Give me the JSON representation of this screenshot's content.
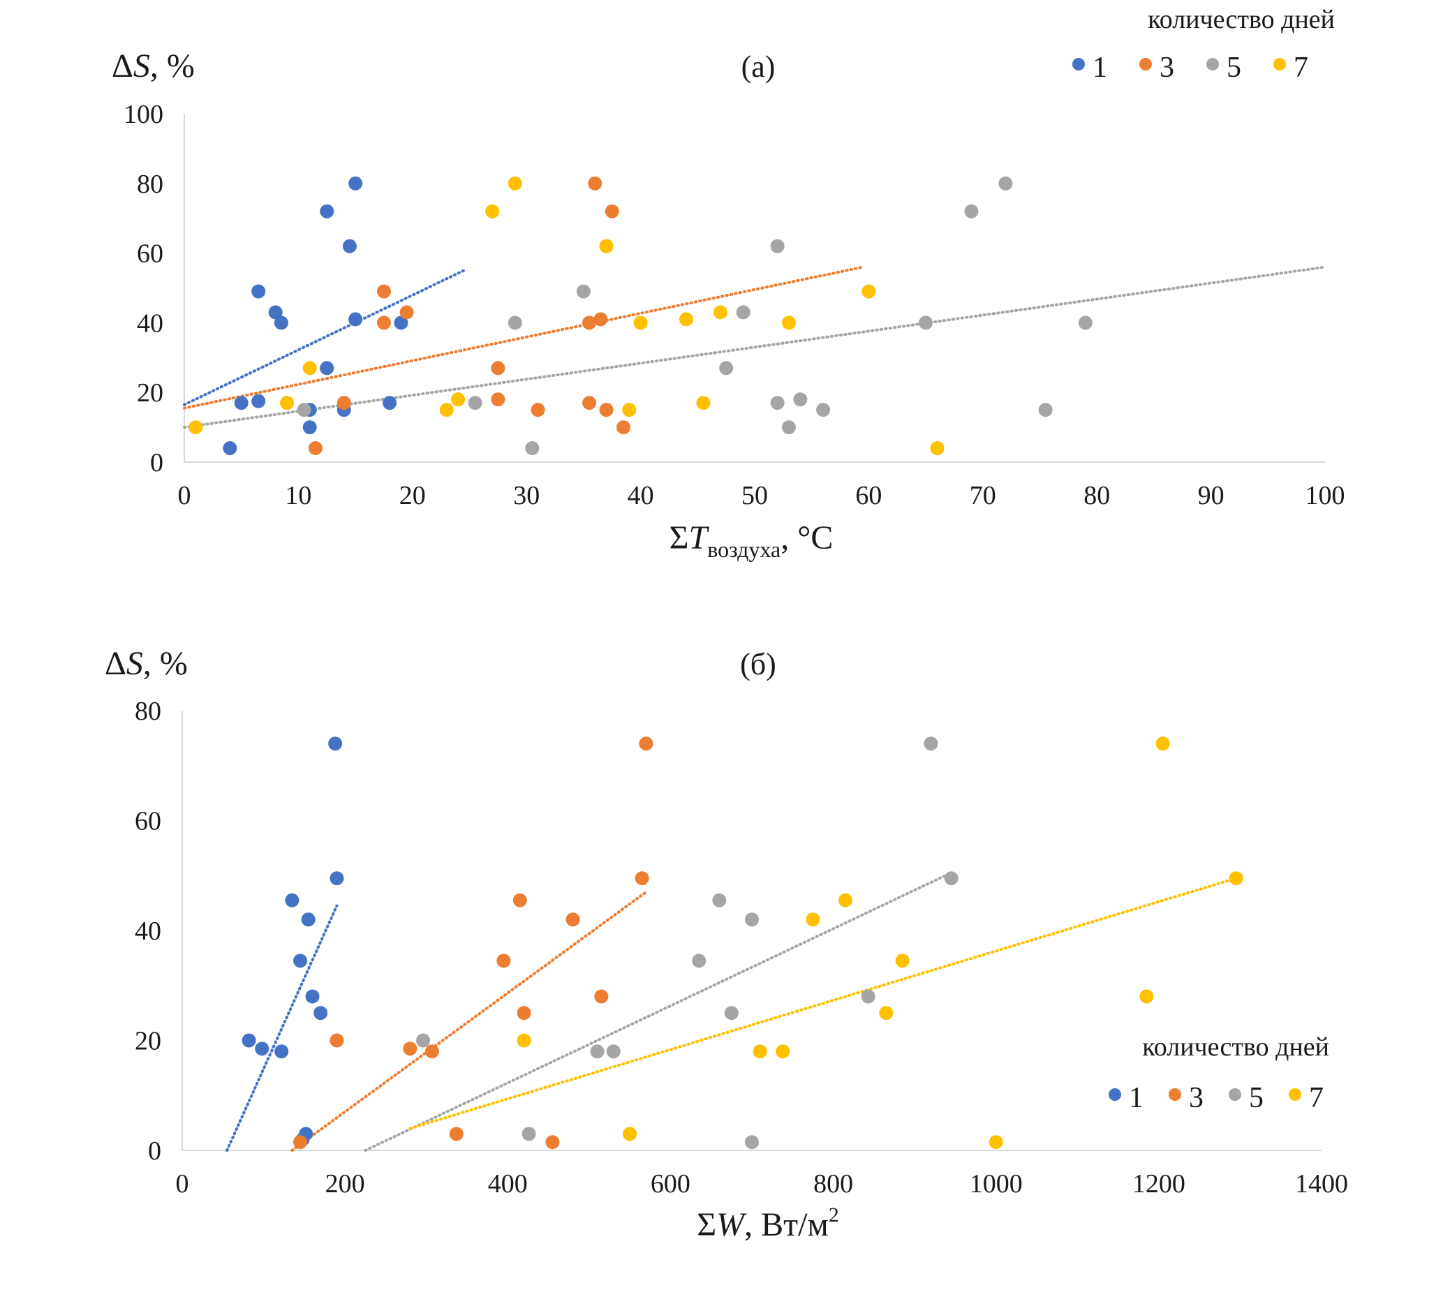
{
  "colors": {
    "series_1": "#4472c4",
    "series_3": "#ed7d31",
    "series_5": "#a5a5a5",
    "series_7": "#ffc000",
    "axis": "#d9d9d9",
    "text": "#1a1a1a"
  },
  "chart_data": [
    {
      "type": "scatter",
      "title": "(а)",
      "ylabel": "ΔS, %",
      "xlabel_main": "ΣT",
      "xlabel_sub": "воздуха",
      "xlabel_unit": ", °C",
      "xlim": [
        0,
        100
      ],
      "ylim": [
        0,
        100
      ],
      "x_ticks": [
        "0",
        "10",
        "20",
        "30",
        "40",
        "50",
        "60",
        "70",
        "80",
        "90",
        "100"
      ],
      "y_ticks": [
        "0",
        "20",
        "40",
        "60",
        "80",
        "100"
      ],
      "legend_title": "количество дней",
      "legend_position": "top-right",
      "series": [
        {
          "name": "1",
          "color": "#4472c4",
          "points": [
            [
              4,
              4
            ],
            [
              5,
              17
            ],
            [
              6.5,
              17.5
            ],
            [
              6.5,
              49
            ],
            [
              8,
              43
            ],
            [
              8.5,
              40
            ],
            [
              11,
              15
            ],
            [
              11,
              10
            ],
            [
              12.5,
              72
            ],
            [
              12.5,
              27
            ],
            [
              14,
              15
            ],
            [
              14.5,
              62
            ],
            [
              15,
              80
            ],
            [
              15,
              41
            ],
            [
              18,
              17
            ],
            [
              19,
              40
            ]
          ],
          "trend": [
            [
              0,
              16.5
            ],
            [
              24.5,
              55
            ]
          ]
        },
        {
          "name": "3",
          "color": "#ed7d31",
          "points": [
            [
              11.5,
              4
            ],
            [
              14,
              17
            ],
            [
              17.5,
              49
            ],
            [
              17.5,
              40
            ],
            [
              19.5,
              43
            ],
            [
              27.5,
              27
            ],
            [
              27.5,
              18
            ],
            [
              31,
              15
            ],
            [
              35.5,
              40
            ],
            [
              35.5,
              17
            ],
            [
              36,
              80
            ],
            [
              36.5,
              41
            ],
            [
              37,
              62
            ],
            [
              37,
              15
            ],
            [
              37.5,
              72
            ],
            [
              38.5,
              10
            ]
          ],
          "trend": [
            [
              0,
              15.5
            ],
            [
              59.5,
              56
            ]
          ]
        },
        {
          "name": "5",
          "color": "#a5a5a5",
          "points": [
            [
              10.5,
              15
            ],
            [
              25.5,
              17
            ],
            [
              29,
              40
            ],
            [
              30.5,
              4
            ],
            [
              35,
              49
            ],
            [
              47.5,
              27
            ],
            [
              49,
              43
            ],
            [
              52,
              62
            ],
            [
              52,
              17
            ],
            [
              53,
              10
            ],
            [
              54,
              18
            ],
            [
              56,
              15
            ],
            [
              65,
              40
            ],
            [
              69,
              72
            ],
            [
              72,
              80
            ],
            [
              75.5,
              15
            ],
            [
              79,
              40
            ]
          ],
          "trend": [
            [
              0,
              10
            ],
            [
              100,
              56
            ]
          ]
        },
        {
          "name": "7",
          "color": "#ffc000",
          "points": [
            [
              1,
              10
            ],
            [
              9,
              17
            ],
            [
              11,
              27
            ],
            [
              23,
              15
            ],
            [
              24,
              18
            ],
            [
              27,
              72
            ],
            [
              29,
              80
            ],
            [
              37,
              62
            ],
            [
              39,
              15
            ],
            [
              40,
              40
            ],
            [
              44,
              41
            ],
            [
              45.5,
              17
            ],
            [
              47,
              43
            ],
            [
              53,
              40
            ],
            [
              60,
              49
            ],
            [
              66,
              4
            ]
          ],
          "trend": null
        }
      ]
    },
    {
      "type": "scatter",
      "title": "(б)",
      "ylabel": "ΔS, %",
      "xlabel_main": "ΣW",
      "xlabel_unit": ", Вт/м",
      "xlabel_sup": "2",
      "xlim": [
        0,
        1400
      ],
      "ylim": [
        0,
        80
      ],
      "x_ticks": [
        "0",
        "200",
        "400",
        "600",
        "800",
        "1000",
        "1200",
        "1400"
      ],
      "y_ticks": [
        "0",
        "20",
        "40",
        "60",
        "80"
      ],
      "legend_title": "количество дней",
      "legend_position": "bottom-right",
      "series": [
        {
          "name": "1",
          "color": "#4472c4",
          "points": [
            [
              82,
              20
            ],
            [
              98,
              18.5
            ],
            [
              122,
              18
            ],
            [
              135,
              45.5
            ],
            [
              145,
              34.5
            ],
            [
              148,
              2
            ],
            [
              152,
              3
            ],
            [
              155,
              42
            ],
            [
              160,
              28
            ],
            [
              170,
              25
            ],
            [
              188,
              74
            ],
            [
              190,
              49.5
            ]
          ],
          "trend": [
            [
              55,
              0
            ],
            [
              190,
              44.5
            ]
          ]
        },
        {
          "name": "3",
          "color": "#ed7d31",
          "points": [
            [
              145,
              1.5
            ],
            [
              190,
              20
            ],
            [
              280,
              18.5
            ],
            [
              307,
              18
            ],
            [
              337,
              3
            ],
            [
              395,
              34.5
            ],
            [
              415,
              45.5
            ],
            [
              420,
              25
            ],
            [
              455,
              1.5
            ],
            [
              480,
              42
            ],
            [
              515,
              28
            ],
            [
              565,
              49.5
            ],
            [
              570,
              74
            ]
          ],
          "trend": [
            [
              135,
              0
            ],
            [
              570,
              47
            ]
          ]
        },
        {
          "name": "5",
          "color": "#a5a5a5",
          "points": [
            [
              296,
              20
            ],
            [
              426,
              3
            ],
            [
              510,
              18
            ],
            [
              530,
              18
            ],
            [
              635,
              34.5
            ],
            [
              660,
              45.5
            ],
            [
              675,
              25
            ],
            [
              700,
              42
            ],
            [
              700,
              1.5
            ],
            [
              920,
              74
            ],
            [
              945,
              49.5
            ],
            [
              843,
              28
            ]
          ],
          "trend": [
            [
              225,
              0
            ],
            [
              945,
              50.5
            ]
          ]
        },
        {
          "name": "7",
          "color": "#ffc000",
          "points": [
            [
              420,
              20
            ],
            [
              550,
              3
            ],
            [
              710,
              18
            ],
            [
              738,
              18
            ],
            [
              775,
              42
            ],
            [
              815,
              45.5
            ],
            [
              865,
              25
            ],
            [
              885,
              34.5
            ],
            [
              1000,
              1.5
            ],
            [
              1185,
              28
            ],
            [
              1205,
              74
            ],
            [
              1295,
              49.5
            ]
          ],
          "trend": [
            [
              280,
              4
            ],
            [
              1295,
              49.5
            ]
          ]
        }
      ]
    }
  ]
}
